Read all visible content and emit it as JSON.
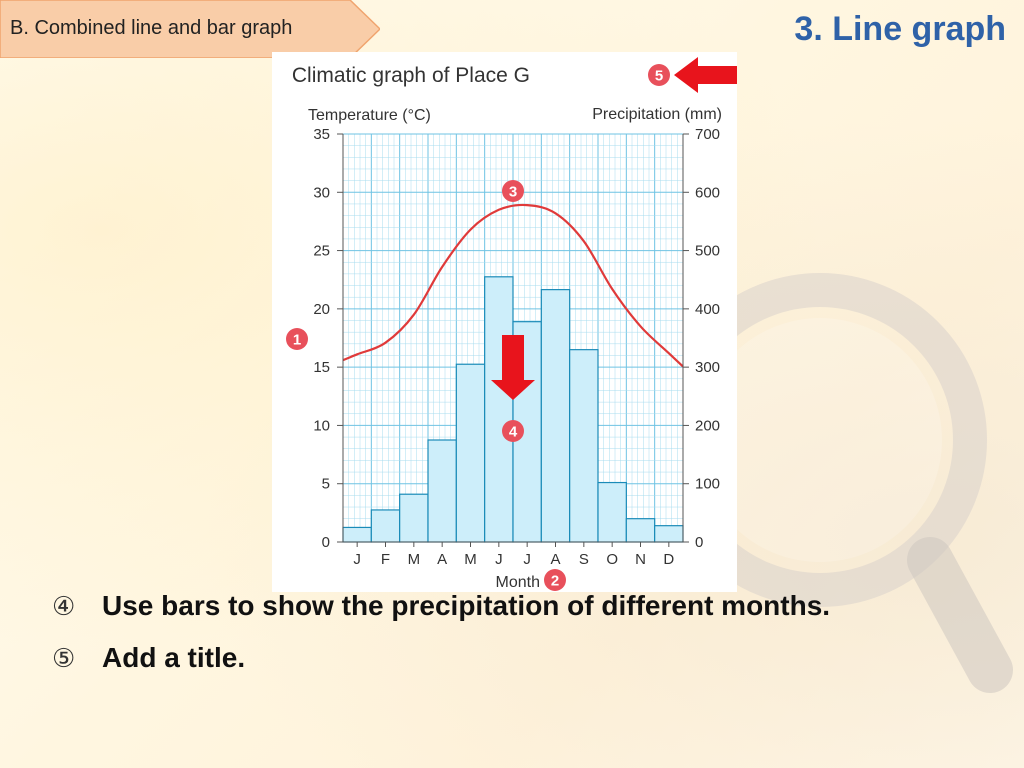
{
  "header": {
    "section_tab": "B. Combined line and bar graph",
    "slide_title": "3. Line graph"
  },
  "bullets": [
    {
      "marker": "④",
      "text": "Use bars to show the precipitation of different months."
    },
    {
      "marker": "⑤",
      "text": "Add a title."
    }
  ],
  "chart_data": {
    "type": "bar",
    "title": "Climatic graph of Place G",
    "title_marker": "5",
    "xlabel": "Month",
    "xlabel_marker": "2",
    "categories": [
      "J",
      "F",
      "M",
      "A",
      "M",
      "J",
      "J",
      "A",
      "S",
      "O",
      "N",
      "D"
    ],
    "y_left": {
      "label": "Temperature (°C)",
      "range": [
        0,
        35
      ],
      "ticks": [
        "0",
        "5",
        "10",
        "15",
        "20",
        "25",
        "30",
        "35"
      ]
    },
    "y_right": {
      "label": "Precipitation (mm)",
      "range": [
        0,
        700
      ],
      "ticks": [
        "0",
        "100",
        "200",
        "300",
        "400",
        "500",
        "600",
        "700"
      ]
    },
    "series": [
      {
        "type": "bar",
        "axis": "right",
        "values": [
          25,
          55,
          82,
          175,
          305,
          455,
          378,
          433,
          330,
          102,
          40,
          28
        ]
      },
      {
        "type": "line",
        "axis": "left",
        "values": [
          16.1,
          17.1,
          19.5,
          23.6,
          26.8,
          28.5,
          28.9,
          28.2,
          25.8,
          21.7,
          18.5,
          16.2
        ]
      }
    ],
    "markers": [
      {
        "label": "1",
        "points_to": "temperature axis"
      },
      {
        "label": "3",
        "points_to": "temperature line"
      },
      {
        "label": "4",
        "points_to": "precipitation bars"
      }
    ],
    "grid": true,
    "colors": {
      "bar_fill": "#cdeefa",
      "bar_stroke": "#1a8bb8",
      "line": "#e03a3a",
      "grid_minor": "#a8dcef",
      "grid_major": "#6fc3e3",
      "marker": "#e8505b",
      "arrow": "#e8141c"
    }
  }
}
